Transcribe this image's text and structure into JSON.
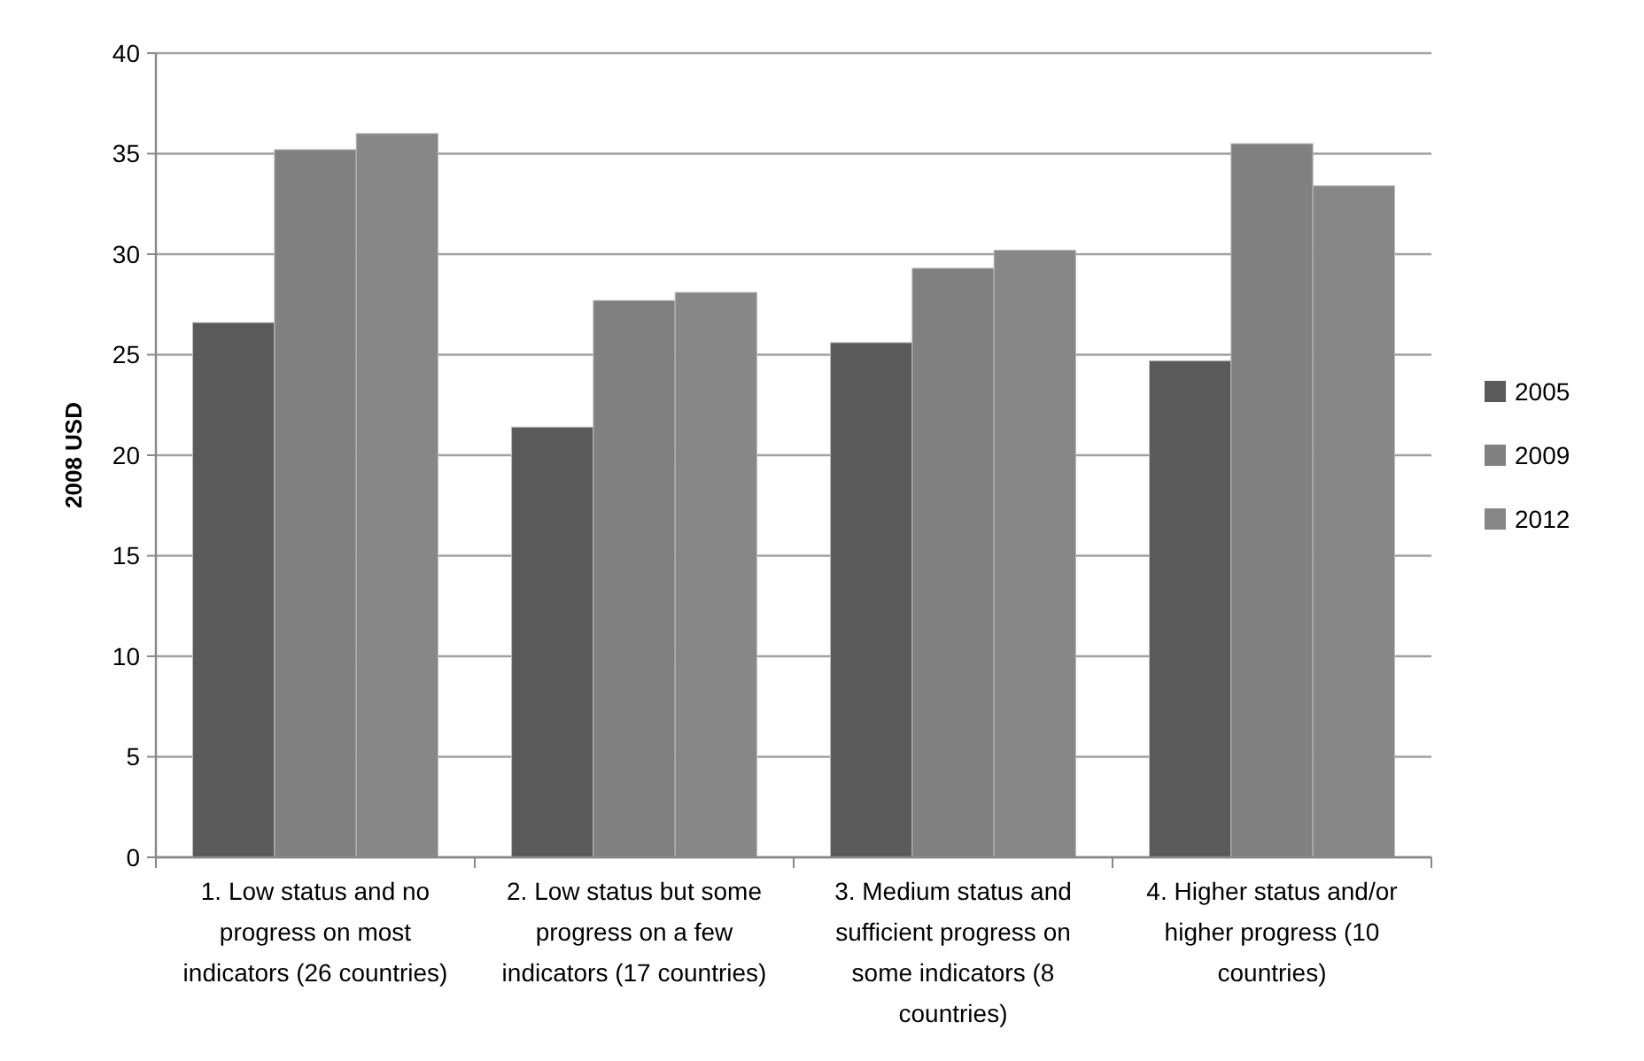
{
  "chart_data": {
    "type": "bar",
    "ylabel": "2008 USD",
    "categories": [
      "1. Low status and no progress on most indicators (26 countries)",
      "2. Low status but some progress on a few indicators (17 countries)",
      "3. Medium status and sufficient progress on some indicators (8 countries)",
      "4. Higher status and/or higher progress (10 countries)"
    ],
    "series": [
      {
        "name": "2005",
        "color": "#5a5a5a",
        "values": [
          26.6,
          21.4,
          25.6,
          24.7
        ]
      },
      {
        "name": "2009",
        "color": "#808080",
        "values": [
          35.2,
          27.7,
          29.3,
          35.5
        ]
      },
      {
        "name": "2012",
        "color": "#878787",
        "values": [
          36.0,
          28.1,
          30.2,
          33.4
        ]
      }
    ],
    "ylim": [
      0,
      40
    ],
    "yticks": [
      0,
      5,
      10,
      15,
      20,
      25,
      30,
      35,
      40
    ],
    "grid": "y",
    "legend": "right"
  }
}
